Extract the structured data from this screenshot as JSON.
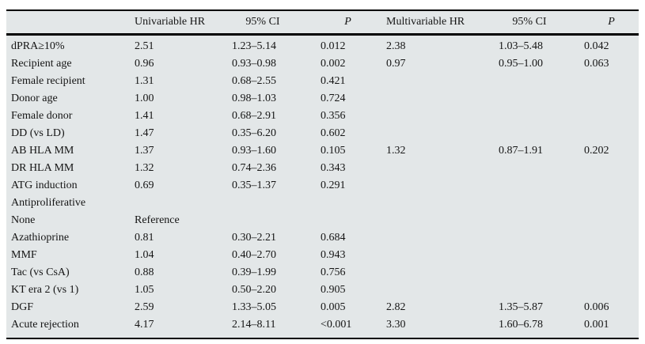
{
  "table": {
    "background_color": "#e3e7e8",
    "rule_color": "#000000",
    "columns": [
      "",
      "Univariable HR",
      "95% CI",
      "P",
      "Multivariable HR",
      "95% CI",
      "P"
    ],
    "rows": [
      {
        "label": "dPRA≥10%",
        "uni_hr": "2.51",
        "uni_ci": "1.23–5.14",
        "uni_p": "0.012",
        "multi_hr": "2.38",
        "multi_ci": "1.03–5.48",
        "multi_p": "0.042"
      },
      {
        "label": "Recipient age",
        "uni_hr": "0.96",
        "uni_ci": "0.93–0.98",
        "uni_p": "0.002",
        "multi_hr": "0.97",
        "multi_ci": "0.95–1.00",
        "multi_p": "0.063"
      },
      {
        "label": "Female recipient",
        "uni_hr": "1.31",
        "uni_ci": "0.68–2.55",
        "uni_p": "0.421",
        "multi_hr": "",
        "multi_ci": "",
        "multi_p": ""
      },
      {
        "label": "Donor age",
        "uni_hr": "1.00",
        "uni_ci": "0.98–1.03",
        "uni_p": "0.724",
        "multi_hr": "",
        "multi_ci": "",
        "multi_p": ""
      },
      {
        "label": "Female donor",
        "uni_hr": "1.41",
        "uni_ci": "0.68–2.91",
        "uni_p": "0.356",
        "multi_hr": "",
        "multi_ci": "",
        "multi_p": ""
      },
      {
        "label": "DD (vs LD)",
        "uni_hr": "1.47",
        "uni_ci": "0.35–6.20",
        "uni_p": "0.602",
        "multi_hr": "",
        "multi_ci": "",
        "multi_p": ""
      },
      {
        "label": "AB HLA MM",
        "uni_hr": "1.37",
        "uni_ci": "0.93–1.60",
        "uni_p": "0.105",
        "multi_hr": "1.32",
        "multi_ci": "0.87–1.91",
        "multi_p": "0.202"
      },
      {
        "label": "DR HLA MM",
        "uni_hr": "1.32",
        "uni_ci": "0.74–2.36",
        "uni_p": "0.343",
        "multi_hr": "",
        "multi_ci": "",
        "multi_p": ""
      },
      {
        "label": "ATG induction",
        "uni_hr": "0.69",
        "uni_ci": "0.35–1.37",
        "uni_p": "0.291",
        "multi_hr": "",
        "multi_ci": "",
        "multi_p": ""
      },
      {
        "label": "Antiproliferative",
        "uni_hr": "",
        "uni_ci": "",
        "uni_p": "",
        "multi_hr": "",
        "multi_ci": "",
        "multi_p": ""
      },
      {
        "label": "None",
        "uni_hr": "Reference",
        "uni_ci": "",
        "uni_p": "",
        "multi_hr": "",
        "multi_ci": "",
        "multi_p": ""
      },
      {
        "label": "Azathioprine",
        "uni_hr": "0.81",
        "uni_ci": "0.30–2.21",
        "uni_p": "0.684",
        "multi_hr": "",
        "multi_ci": "",
        "multi_p": ""
      },
      {
        "label": "MMF",
        "uni_hr": "1.04",
        "uni_ci": "0.40–2.70",
        "uni_p": "0.943",
        "multi_hr": "",
        "multi_ci": "",
        "multi_p": ""
      },
      {
        "label": "Tac (vs CsA)",
        "uni_hr": "0.88",
        "uni_ci": "0.39–1.99",
        "uni_p": "0.756",
        "multi_hr": "",
        "multi_ci": "",
        "multi_p": ""
      },
      {
        "label": "KT era 2 (vs 1)",
        "uni_hr": "1.05",
        "uni_ci": "0.50–2.20",
        "uni_p": "0.905",
        "multi_hr": "",
        "multi_ci": "",
        "multi_p": ""
      },
      {
        "label": "DGF",
        "uni_hr": "2.59",
        "uni_ci": "1.33–5.05",
        "uni_p": "0.005",
        "multi_hr": "2.82",
        "multi_ci": "1.35–5.87",
        "multi_p": "0.006"
      },
      {
        "label": "Acute rejection",
        "uni_hr": "4.17",
        "uni_ci": "2.14–8.11",
        "uni_p": "<0.001",
        "multi_hr": "3.30",
        "multi_ci": "1.60–6.78",
        "multi_p": "0.001"
      }
    ]
  }
}
